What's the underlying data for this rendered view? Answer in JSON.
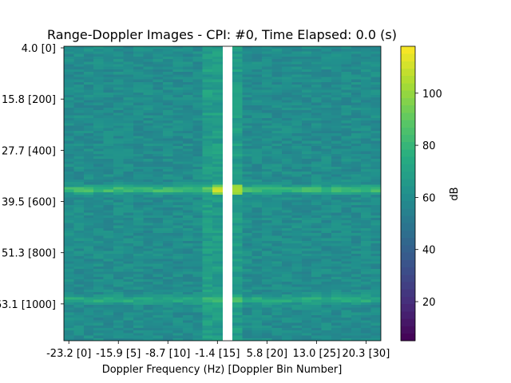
{
  "chart_data": {
    "type": "heatmap",
    "title": "Range-Doppler Images - CPI: #0, Time Elapsed: 0.0 (s)",
    "xlabel": "Doppler Frequency (Hz) [Doppler Bin Number]",
    "ylabel": "",
    "x_ticks": [
      {
        "bin": 0,
        "label": "-23.2  [0]"
      },
      {
        "bin": 5,
        "label": "-15.9  [5]"
      },
      {
        "bin": 10,
        "label": "-8.7  [10]"
      },
      {
        "bin": 15,
        "label": "-1.4  [15]"
      },
      {
        "bin": 20,
        "label": "5.8  [20]"
      },
      {
        "bin": 25,
        "label": "13.0  [25]"
      },
      {
        "bin": 30,
        "label": "20.3  [30]"
      }
    ],
    "y_ticks": [
      {
        "bin": 0,
        "label": "4.0  [0]"
      },
      {
        "bin": 200,
        "label": "15.8  [200]"
      },
      {
        "bin": 400,
        "label": "27.7  [400]"
      },
      {
        "bin": 600,
        "label": "39.5  [600]"
      },
      {
        "bin": 800,
        "label": "51.3  [800]"
      },
      {
        "bin": 1000,
        "label": "63.1  [1000]"
      }
    ],
    "x_bins": 32,
    "y_range": [
      0,
      1150
    ],
    "blank_column_bin": 16,
    "colorbar": {
      "label": "dB",
      "range": [
        5,
        118
      ],
      "ticks": [
        20,
        40,
        60,
        80,
        100
      ],
      "colormap": "viridis"
    },
    "background_level_db": 60,
    "features": [
      {
        "kind": "horizontal_band",
        "range_bin": 560,
        "peak_db": 84
      },
      {
        "kind": "horizontal_band",
        "range_bin": 990,
        "peak_db": 75
      },
      {
        "kind": "near_zero_doppler_ridge",
        "doppler_bins": [
          14,
          17
        ],
        "peak_db": 118
      }
    ]
  }
}
